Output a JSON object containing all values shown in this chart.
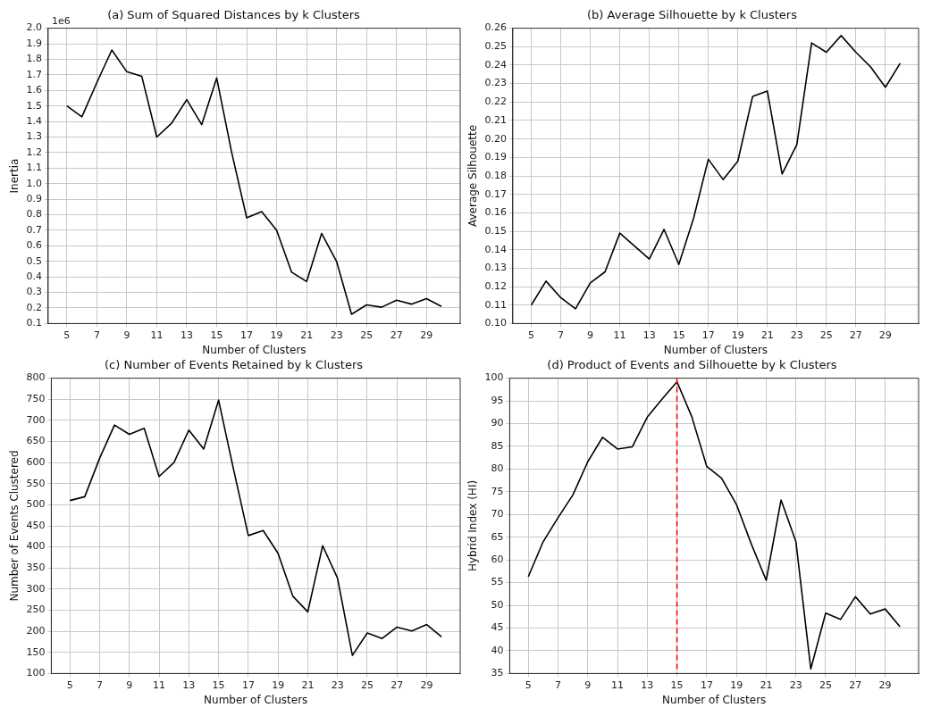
{
  "chart_data": [
    {
      "type": "line",
      "title": "(a) Sum of Squared Distances by k Clusters",
      "xlabel": "Number of Clusters",
      "ylabel": "Inertia",
      "annotations": [
        "1e6"
      ],
      "x": [
        5,
        6,
        7,
        8,
        9,
        10,
        11,
        12,
        13,
        14,
        15,
        16,
        17,
        18,
        19,
        20,
        21,
        22,
        23,
        24,
        25,
        26,
        27,
        28,
        29,
        30
      ],
      "series": [
        {
          "color": "#000000",
          "values": [
            1.5,
            1.43,
            1.65,
            1.86,
            1.72,
            1.69,
            1.3,
            1.39,
            1.54,
            1.38,
            1.68,
            1.2,
            0.78,
            0.82,
            0.7,
            0.43,
            0.37,
            0.68,
            0.5,
            0.16,
            0.22,
            0.205,
            0.25,
            0.225,
            0.26,
            0.21
          ]
        }
      ],
      "xlim": [
        3.75,
        31.25
      ],
      "xticks": [
        5,
        7,
        9,
        11,
        13,
        15,
        17,
        19,
        21,
        23,
        25,
        27,
        29
      ],
      "ylim": [
        0.1,
        2.0
      ],
      "yticks": [
        0.1,
        0.2,
        0.3,
        0.4,
        0.5,
        0.6,
        0.7,
        0.8,
        0.9,
        {
          "value": 1,
          "label": "1.0"
        },
        1.1,
        1.2,
        1.3,
        1.4,
        1.5,
        1.6,
        1.7,
        1.8,
        1.9,
        {
          "value": 2,
          "label": "2.0"
        }
      ],
      "grid": true,
      "marker": "none",
      "line_style": "solid"
    },
    {
      "type": "line",
      "title": "(b) Average Silhouette by k Clusters",
      "xlabel": "Number of Clusters",
      "ylabel": "Average Silhouette",
      "x": [
        5,
        6,
        7,
        8,
        9,
        10,
        11,
        12,
        13,
        14,
        15,
        16,
        17,
        18,
        19,
        20,
        21,
        22,
        23,
        24,
        25,
        26,
        27,
        28,
        29,
        30
      ],
      "series": [
        {
          "color": "#000000",
          "values": [
            0.11,
            0.123,
            0.114,
            0.108,
            0.122,
            0.128,
            0.149,
            0.142,
            0.135,
            0.151,
            0.132,
            0.157,
            0.189,
            0.178,
            0.188,
            0.223,
            0.226,
            0.181,
            0.197,
            0.252,
            0.247,
            0.256,
            0.247,
            0.239,
            0.228,
            0.241
          ]
        }
      ],
      "xlim": [
        3.75,
        31.25
      ],
      "xticks": [
        5,
        7,
        9,
        11,
        13,
        15,
        17,
        19,
        21,
        23,
        25,
        27,
        29
      ],
      "ylim": [
        0.1,
        0.26
      ],
      "yticks": [
        {
          "value": 0.1,
          "label": "0.10"
        },
        {
          "value": 0.11,
          "label": "0.11"
        },
        {
          "value": 0.12,
          "label": "0.12"
        },
        {
          "value": 0.13,
          "label": "0.13"
        },
        {
          "value": 0.14,
          "label": "0.14"
        },
        {
          "value": 0.15,
          "label": "0.15"
        },
        {
          "value": 0.16,
          "label": "0.16"
        },
        {
          "value": 0.17,
          "label": "0.17"
        },
        {
          "value": 0.18,
          "label": "0.18"
        },
        {
          "value": 0.19,
          "label": "0.19"
        },
        {
          "value": 0.2,
          "label": "0.20"
        },
        {
          "value": 0.21,
          "label": "0.21"
        },
        {
          "value": 0.22,
          "label": "0.22"
        },
        {
          "value": 0.23,
          "label": "0.23"
        },
        {
          "value": 0.24,
          "label": "0.24"
        },
        {
          "value": 0.25,
          "label": "0.25"
        },
        {
          "value": 0.26,
          "label": "0.26"
        }
      ],
      "grid": true,
      "marker": "none",
      "line_style": "solid"
    },
    {
      "type": "line",
      "title": "(c) Number of Events Retained by k Clusters",
      "xlabel": "Number of Clusters",
      "ylabel": "Number of Events Clustered",
      "x": [
        5,
        6,
        7,
        8,
        9,
        10,
        11,
        12,
        13,
        14,
        15,
        16,
        17,
        18,
        19,
        20,
        21,
        22,
        23,
        24,
        25,
        26,
        27,
        28,
        29,
        30
      ],
      "series": [
        {
          "color": "#000000",
          "values": [
            510,
            519,
            610,
            689,
            667,
            681,
            567,
            600,
            677,
            632,
            748,
            585,
            427,
            439,
            385,
            283,
            246,
            403,
            326,
            143,
            196,
            183,
            210,
            201,
            216,
            187
          ]
        }
      ],
      "xlim": [
        3.75,
        31.25
      ],
      "xticks": [
        5,
        7,
        9,
        11,
        13,
        15,
        17,
        19,
        21,
        23,
        25,
        27,
        29
      ],
      "ylim": [
        100,
        800
      ],
      "yticks": [
        100,
        150,
        200,
        250,
        300,
        350,
        400,
        450,
        500,
        550,
        600,
        650,
        700,
        750,
        800
      ],
      "grid": true,
      "marker": "none",
      "line_style": "solid"
    },
    {
      "type": "line",
      "title": "(d) Product of Events and Silhouette by k Clusters",
      "xlabel": "Number of Clusters",
      "ylabel": "Hybrid Index (HI)",
      "x": [
        5,
        6,
        7,
        8,
        9,
        10,
        11,
        12,
        13,
        14,
        15,
        16,
        17,
        18,
        19,
        20,
        21,
        22,
        23,
        24,
        25,
        26,
        27,
        28,
        29,
        30
      ],
      "series": [
        {
          "color": "#000000",
          "values": [
            56.3,
            64,
            69.3,
            74.3,
            81.6,
            87,
            84.4,
            84.9,
            91.4,
            95.4,
            99.2,
            91.5,
            80.6,
            78,
            72.2,
            63.5,
            55.5,
            73.2,
            64,
            36,
            48.3,
            46.9,
            51.9,
            48.1,
            49.2,
            45.3
          ]
        }
      ],
      "xlim": [
        3.75,
        31.25
      ],
      "xticks": [
        5,
        7,
        9,
        11,
        13,
        15,
        17,
        19,
        21,
        23,
        25,
        27,
        29
      ],
      "ylim": [
        35,
        100
      ],
      "yticks": [
        35,
        40,
        45,
        50,
        55,
        60,
        65,
        70,
        75,
        80,
        85,
        90,
        95,
        100
      ],
      "ref_lines": [
        {
          "axis": "x",
          "value": 15,
          "color": "#ff0000",
          "line_style": "dashed"
        }
      ],
      "grid": true,
      "marker": "none",
      "line_style": "solid"
    }
  ]
}
